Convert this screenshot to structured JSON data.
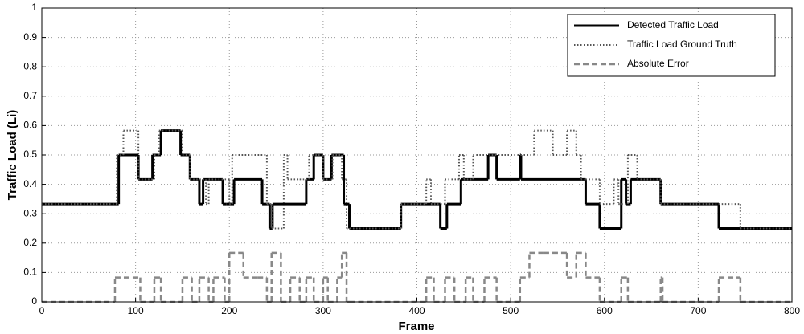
{
  "chart_data": {
    "type": "line",
    "drawstyle": "steps-post",
    "xlabel": "Frame",
    "ylabel": "Traffic Load (Li)",
    "xlim": [
      0,
      800
    ],
    "xticks": [
      0,
      100,
      200,
      300,
      400,
      500,
      600,
      700,
      800
    ],
    "ylim": [
      0,
      1
    ],
    "yticks": [
      0,
      0.1,
      0.2,
      0.3,
      0.4,
      0.5,
      0.6,
      0.7,
      0.8,
      0.9,
      1
    ],
    "grid": true,
    "legend": "upper right",
    "series": [
      {
        "name": "Detected Traffic Load",
        "color": "#000000",
        "style": "solid",
        "x": [
          0,
          82,
          103,
          118,
          127,
          148,
          158,
          168,
          172,
          193,
          197,
          205,
          235,
          243,
          246,
          282,
          290,
          300,
          309,
          322,
          328,
          383,
          425,
          432,
          447,
          476,
          485,
          510,
          511,
          580,
          595,
          618,
          623,
          628,
          660,
          722,
          800
        ],
        "values": [
          0.333,
          0.5,
          0.417,
          0.5,
          0.583,
          0.5,
          0.417,
          0.333,
          0.417,
          0.333,
          0.333,
          0.417,
          0.333,
          0.25,
          0.333,
          0.417,
          0.5,
          0.417,
          0.5,
          0.333,
          0.25,
          0.333,
          0.25,
          0.333,
          0.417,
          0.5,
          0.417,
          0.5,
          0.417,
          0.333,
          0.25,
          0.417,
          0.333,
          0.417,
          0.333,
          0.25,
          0.25
        ]
      },
      {
        "name": "Traffic Load Ground Truth",
        "color": "#555555",
        "style": "dotted",
        "x": [
          0,
          80,
          87,
          103,
          120,
          125,
          150,
          158,
          175,
          178,
          200,
          203,
          240,
          245,
          258,
          262,
          275,
          285,
          295,
          300,
          310,
          320,
          325,
          383,
          410,
          415,
          430,
          445,
          450,
          460,
          480,
          490,
          525,
          535,
          545,
          560,
          570,
          575,
          580,
          595,
          610,
          615,
          625,
          635,
          660,
          745,
          800
        ],
        "values": [
          0.333,
          0.5,
          0.583,
          0.417,
          0.5,
          0.583,
          0.5,
          0.417,
          0.333,
          0.417,
          0.333,
          0.5,
          0.333,
          0.25,
          0.5,
          0.417,
          0.417,
          0.5,
          0.5,
          0.417,
          0.5,
          0.417,
          0.25,
          0.333,
          0.417,
          0.333,
          0.417,
          0.5,
          0.417,
          0.5,
          0.5,
          0.5,
          0.583,
          0.583,
          0.5,
          0.583,
          0.5,
          0.417,
          0.417,
          0.333,
          0.417,
          0.333,
          0.5,
          0.417,
          0.333,
          0.25,
          0.25
        ]
      },
      {
        "name": "Absolute Error",
        "color": "#888888",
        "style": "dashed",
        "x": [
          0,
          78,
          105,
          120,
          127,
          150,
          160,
          168,
          178,
          183,
          195,
          200,
          215,
          230,
          240,
          245,
          255,
          265,
          275,
          282,
          290,
          300,
          305,
          315,
          320,
          325,
          328,
          410,
          418,
          430,
          440,
          452,
          460,
          472,
          485,
          510,
          520,
          535,
          560,
          570,
          580,
          595,
          618,
          625,
          660,
          662,
          722,
          745,
          800
        ],
        "values": [
          0,
          0.083,
          0,
          0.083,
          0,
          0.083,
          0,
          0.083,
          0,
          0.083,
          0,
          0.167,
          0.083,
          0.083,
          0,
          0.167,
          0,
          0.083,
          0,
          0.083,
          0,
          0.083,
          0,
          0.083,
          0.167,
          0,
          0,
          0.083,
          0,
          0.083,
          0,
          0.083,
          0,
          0.083,
          0,
          0.083,
          0.167,
          0.167,
          0.083,
          0.167,
          0.083,
          0,
          0.083,
          0,
          0.083,
          0,
          0.083,
          0,
          0
        ]
      }
    ]
  }
}
